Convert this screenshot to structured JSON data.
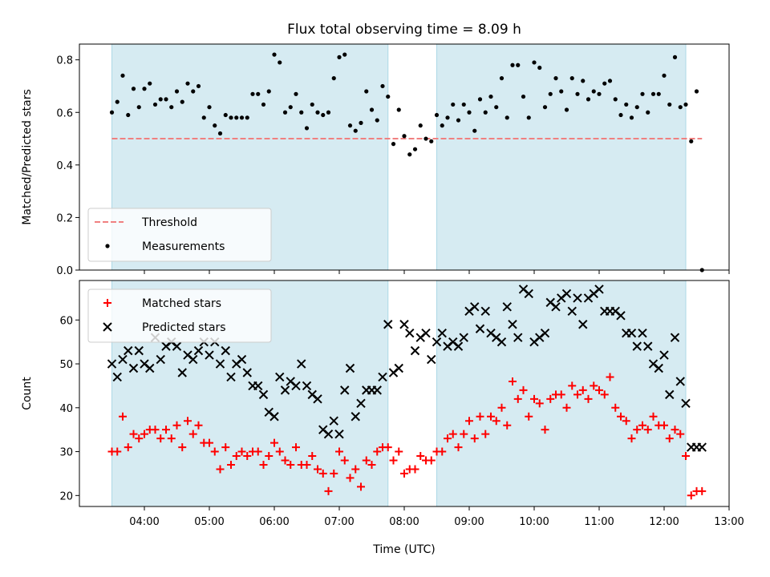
{
  "title": "Flux total observing time = 8.09 h",
  "chart_data": [
    {
      "type": "scatter",
      "ylabel": "Matched/Predicted stars",
      "xlabel": "",
      "xlim": [
        "03:00",
        "13:00"
      ],
      "ylim": [
        0,
        0.86
      ],
      "yticks": [
        0.0,
        0.2,
        0.4,
        0.6,
        0.8
      ],
      "ytick_labels": [
        "0.0",
        "0.2",
        "0.4",
        "0.6",
        "0.8"
      ],
      "xticks": [
        "04:00",
        "05:00",
        "06:00",
        "07:00",
        "08:00",
        "09:00",
        "10:00",
        "11:00",
        "12:00",
        "13:00"
      ],
      "observing_windows": [
        [
          "03:30",
          "07:45"
        ],
        [
          "08:30",
          "12:20"
        ]
      ],
      "legend": {
        "placement": "lower-left",
        "entries": [
          "Threshold",
          "Measurements"
        ]
      },
      "series": [
        {
          "name": "Threshold",
          "kind": "dashed-line",
          "color": "#f08080",
          "x": [
            "03:30",
            "12:35"
          ],
          "y": [
            0.5,
            0.5
          ]
        },
        {
          "name": "Measurements",
          "kind": "points",
          "color": "#000000",
          "x": [
            "03:30",
            "03:35",
            "03:40",
            "03:45",
            "03:50",
            "03:55",
            "04:00",
            "04:05",
            "04:10",
            "04:15",
            "04:20",
            "04:25",
            "04:30",
            "04:35",
            "04:40",
            "04:45",
            "04:50",
            "04:55",
            "05:00",
            "05:05",
            "05:10",
            "05:15",
            "05:20",
            "05:25",
            "05:30",
            "05:35",
            "05:40",
            "05:45",
            "05:50",
            "05:55",
            "06:00",
            "06:05",
            "06:10",
            "06:15",
            "06:20",
            "06:25",
            "06:30",
            "06:35",
            "06:40",
            "06:45",
            "06:50",
            "06:55",
            "07:00",
            "07:05",
            "07:10",
            "07:15",
            "07:20",
            "07:25",
            "07:30",
            "07:35",
            "07:40",
            "07:45",
            "07:50",
            "07:55",
            "08:00",
            "08:05",
            "08:10",
            "08:15",
            "08:20",
            "08:25",
            "08:30",
            "08:35",
            "08:40",
            "08:45",
            "08:50",
            "08:55",
            "09:00",
            "09:05",
            "09:10",
            "09:15",
            "09:20",
            "09:25",
            "09:30",
            "09:35",
            "09:40",
            "09:45",
            "09:50",
            "09:55",
            "10:00",
            "10:05",
            "10:10",
            "10:15",
            "10:20",
            "10:25",
            "10:30",
            "10:35",
            "10:40",
            "10:45",
            "10:50",
            "10:55",
            "11:00",
            "11:05",
            "11:10",
            "11:15",
            "11:20",
            "11:25",
            "11:30",
            "11:35",
            "11:40",
            "11:45",
            "11:50",
            "11:55",
            "12:00",
            "12:05",
            "12:10",
            "12:15",
            "12:20",
            "12:25",
            "12:30",
            "12:35"
          ],
          "y": [
            0.6,
            0.64,
            0.74,
            0.59,
            0.69,
            0.62,
            0.69,
            0.71,
            0.63,
            0.65,
            0.65,
            0.62,
            0.68,
            0.64,
            0.71,
            0.68,
            0.7,
            0.58,
            0.62,
            0.55,
            0.52,
            0.59,
            0.58,
            0.58,
            0.58,
            0.58,
            0.67,
            0.67,
            0.63,
            0.68,
            0.82,
            0.79,
            0.6,
            0.62,
            0.67,
            0.6,
            0.54,
            0.63,
            0.6,
            0.59,
            0.6,
            0.73,
            0.81,
            0.82,
            0.55,
            0.53,
            0.56,
            0.68,
            0.61,
            0.57,
            0.7,
            0.66,
            0.48,
            0.61,
            0.51,
            0.44,
            0.46,
            0.55,
            0.5,
            0.49,
            0.59,
            0.55,
            0.58,
            0.63,
            0.57,
            0.63,
            0.6,
            0.53,
            0.65,
            0.6,
            0.66,
            0.62,
            0.73,
            0.58,
            0.78,
            0.78,
            0.66,
            0.58,
            0.79,
            0.77,
            0.62,
            0.67,
            0.73,
            0.68,
            0.61,
            0.73,
            0.67,
            0.72,
            0.65,
            0.68,
            0.67,
            0.71,
            0.72,
            0.65,
            0.59,
            0.63,
            0.58,
            0.62,
            0.67,
            0.6,
            0.67,
            0.67,
            0.74,
            0.63,
            0.81,
            0.62,
            0.63,
            0.49,
            0.68,
            0.0
          ]
        }
      ]
    },
    {
      "type": "scatter",
      "ylabel": "Count",
      "xlabel": "Time (UTC)",
      "xlim": [
        "03:00",
        "13:00"
      ],
      "ylim": [
        17.5,
        69
      ],
      "yticks": [
        20,
        30,
        40,
        50,
        60
      ],
      "ytick_labels": [
        "20",
        "30",
        "40",
        "50",
        "60"
      ],
      "xticks": [
        "04:00",
        "05:00",
        "06:00",
        "07:00",
        "08:00",
        "09:00",
        "10:00",
        "11:00",
        "12:00",
        "13:00"
      ],
      "xtick_labels": [
        "04:00",
        "05:00",
        "06:00",
        "07:00",
        "08:00",
        "09:00",
        "10:00",
        "11:00",
        "12:00",
        "13:00"
      ],
      "observing_windows": [
        [
          "03:30",
          "07:45"
        ],
        [
          "08:30",
          "12:20"
        ]
      ],
      "legend": {
        "placement": "upper-left",
        "entries": [
          "Matched stars",
          "Predicted stars"
        ]
      },
      "series": [
        {
          "name": "Matched stars",
          "kind": "plus",
          "color": "#ff0000",
          "x": [
            "03:30",
            "03:35",
            "03:40",
            "03:45",
            "03:50",
            "03:55",
            "04:00",
            "04:05",
            "04:10",
            "04:15",
            "04:20",
            "04:25",
            "04:30",
            "04:35",
            "04:40",
            "04:45",
            "04:50",
            "04:55",
            "05:00",
            "05:05",
            "05:10",
            "05:15",
            "05:20",
            "05:25",
            "05:30",
            "05:35",
            "05:40",
            "05:45",
            "05:50",
            "05:55",
            "06:00",
            "06:05",
            "06:10",
            "06:15",
            "06:20",
            "06:25",
            "06:30",
            "06:35",
            "06:40",
            "06:45",
            "06:50",
            "06:55",
            "07:00",
            "07:05",
            "07:10",
            "07:15",
            "07:20",
            "07:25",
            "07:30",
            "07:35",
            "07:40",
            "07:45",
            "07:50",
            "07:55",
            "08:00",
            "08:05",
            "08:10",
            "08:15",
            "08:20",
            "08:25",
            "08:30",
            "08:35",
            "08:40",
            "08:45",
            "08:50",
            "08:55",
            "09:00",
            "09:05",
            "09:10",
            "09:15",
            "09:20",
            "09:25",
            "09:30",
            "09:35",
            "09:40",
            "09:45",
            "09:50",
            "09:55",
            "10:00",
            "10:05",
            "10:10",
            "10:15",
            "10:20",
            "10:25",
            "10:30",
            "10:35",
            "10:40",
            "10:45",
            "10:50",
            "10:55",
            "11:00",
            "11:05",
            "11:10",
            "11:15",
            "11:20",
            "11:25",
            "11:30",
            "11:35",
            "11:40",
            "11:45",
            "11:50",
            "11:55",
            "12:00",
            "12:05",
            "12:10",
            "12:15",
            "12:20",
            "12:25",
            "12:30",
            "12:35"
          ],
          "y": [
            30,
            30,
            38,
            31,
            34,
            33,
            34,
            35,
            35,
            33,
            35,
            33,
            36,
            31,
            37,
            34,
            36,
            32,
            32,
            30,
            26,
            31,
            27,
            29,
            30,
            29,
            30,
            30,
            27,
            29,
            32,
            30,
            28,
            27,
            31,
            27,
            27,
            29,
            26,
            25,
            21,
            25,
            30,
            28,
            24,
            26,
            22,
            28,
            27,
            30,
            31,
            31,
            28,
            30,
            25,
            26,
            26,
            29,
            28,
            28,
            30,
            30,
            33,
            34,
            31,
            34,
            37,
            33,
            38,
            34,
            38,
            37,
            40,
            36,
            46,
            42,
            44,
            38,
            42,
            41,
            35,
            42,
            43,
            43,
            40,
            45,
            43,
            44,
            42,
            45,
            44,
            43,
            47,
            40,
            38,
            37,
            33,
            35,
            36,
            35,
            38,
            36,
            36,
            33,
            35,
            34,
            29,
            20,
            21,
            21
          ]
        },
        {
          "name": "Predicted stars",
          "kind": "cross",
          "color": "#000000",
          "x": [
            "03:30",
            "03:35",
            "03:40",
            "03:45",
            "03:50",
            "03:55",
            "04:00",
            "04:05",
            "04:10",
            "04:15",
            "04:20",
            "04:25",
            "04:30",
            "04:35",
            "04:40",
            "04:45",
            "04:50",
            "04:55",
            "05:00",
            "05:05",
            "05:10",
            "05:15",
            "05:20",
            "05:25",
            "05:30",
            "05:35",
            "05:40",
            "05:45",
            "05:50",
            "05:55",
            "06:00",
            "06:05",
            "06:10",
            "06:15",
            "06:20",
            "06:25",
            "06:30",
            "06:35",
            "06:40",
            "06:45",
            "06:50",
            "06:55",
            "07:00",
            "07:05",
            "07:10",
            "07:15",
            "07:20",
            "07:25",
            "07:30",
            "07:35",
            "07:40",
            "07:45",
            "07:50",
            "07:55",
            "08:00",
            "08:05",
            "08:10",
            "08:15",
            "08:20",
            "08:25",
            "08:30",
            "08:35",
            "08:40",
            "08:45",
            "08:50",
            "08:55",
            "09:00",
            "09:05",
            "09:10",
            "09:15",
            "09:20",
            "09:25",
            "09:30",
            "09:35",
            "09:40",
            "09:45",
            "09:50",
            "09:55",
            "10:00",
            "10:05",
            "10:10",
            "10:15",
            "10:20",
            "10:25",
            "10:30",
            "10:35",
            "10:40",
            "10:45",
            "10:50",
            "10:55",
            "11:00",
            "11:05",
            "11:10",
            "11:15",
            "11:20",
            "11:25",
            "11:30",
            "11:35",
            "11:40",
            "11:45",
            "11:50",
            "11:55",
            "12:00",
            "12:05",
            "12:10",
            "12:15",
            "12:20",
            "12:25",
            "12:30",
            "12:35"
          ],
          "y": [
            50,
            47,
            51,
            53,
            49,
            53,
            50,
            49,
            56,
            51,
            54,
            55,
            54,
            48,
            52,
            51,
            53,
            55,
            52,
            55,
            50,
            53,
            47,
            50,
            51,
            48,
            45,
            45,
            43,
            39,
            38,
            47,
            44,
            46,
            45,
            50,
            45,
            43,
            42,
            35,
            34,
            37,
            34,
            44,
            49,
            38,
            41,
            44,
            44,
            44,
            47,
            59,
            48,
            49,
            59,
            57,
            53,
            56,
            57,
            51,
            55,
            57,
            54,
            55,
            54,
            56,
            62,
            63,
            58,
            62,
            57,
            56,
            55,
            63,
            59,
            56,
            67,
            66,
            55,
            56,
            57,
            64,
            63,
            65,
            66,
            62,
            65,
            59,
            65,
            66,
            67,
            62,
            62,
            62,
            61,
            57,
            57,
            54,
            57,
            54,
            50,
            49,
            52,
            43,
            56,
            46,
            41,
            31,
            31,
            31
          ]
        }
      ]
    }
  ]
}
